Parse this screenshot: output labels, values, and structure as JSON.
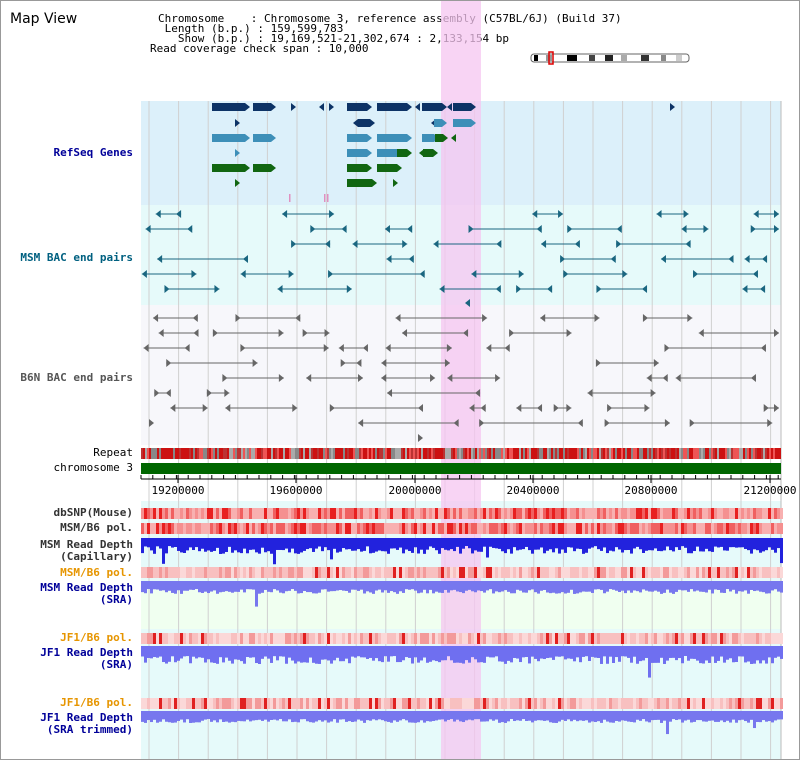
{
  "page": {
    "title": "Map View"
  },
  "info": {
    "chromosome": "Chromosome    : Chromosome 3, reference assembly (C57BL/6J) (Build 37)",
    "length": " Length (b.p.) : 159,599,783",
    "show": "   Show (b.p.) : 19,169,521-21,302,674 : 2,133,154 bp",
    "coverage": "Read coverage check span : 10,000"
  },
  "tracks": {
    "refseq": "RefSeq Genes",
    "msm_bac": "MSM BAC end pairs",
    "b6n_bac": "B6N BAC end pairs",
    "repeat": "Repeat",
    "chromosome": "chromosome 3",
    "dbsnp": "dbSNP(Mouse)",
    "msm_b6_pol": "MSM/B6 pol.",
    "msm_depth_cap_1": "MSM Read Depth",
    "msm_depth_cap_2": "(Capillary)",
    "msm_b6_pol2": "MSM/B6 pol.",
    "msm_depth_sra_1": "MSM Read Depth",
    "msm_depth_sra_2": "(SRA)",
    "jf1_b6_pol": "JF1/B6 pol.",
    "jf1_depth_sra_1": "JF1 Read Depth",
    "jf1_depth_sra_2": "(SRA)",
    "jf1_b6_pol2": "JF1/B6 pol.",
    "jf1_depth_trim_1": "JF1 Read Depth",
    "jf1_depth_trim_2": "(SRA trimmed)"
  },
  "axis": {
    "ticks": [
      "19200000",
      "19600000",
      "20000000",
      "20400000",
      "20800000",
      "21200000"
    ]
  },
  "colors": {
    "highlight": "#f5c6f0",
    "refseq_bg": "#dcf0fa",
    "cyan_bg": "#e6fafa",
    "green_bg": "#f0fff0",
    "gene_dark": "#0d3366",
    "gene_mid": "#3d8fb8",
    "gene_green": "#116611",
    "bac_msm": "#1a6680",
    "bac_b6n": "#666666",
    "depth_blue": "#2222dd",
    "depth_light": "#7777ee",
    "chrom_green": "#006600"
  }
}
